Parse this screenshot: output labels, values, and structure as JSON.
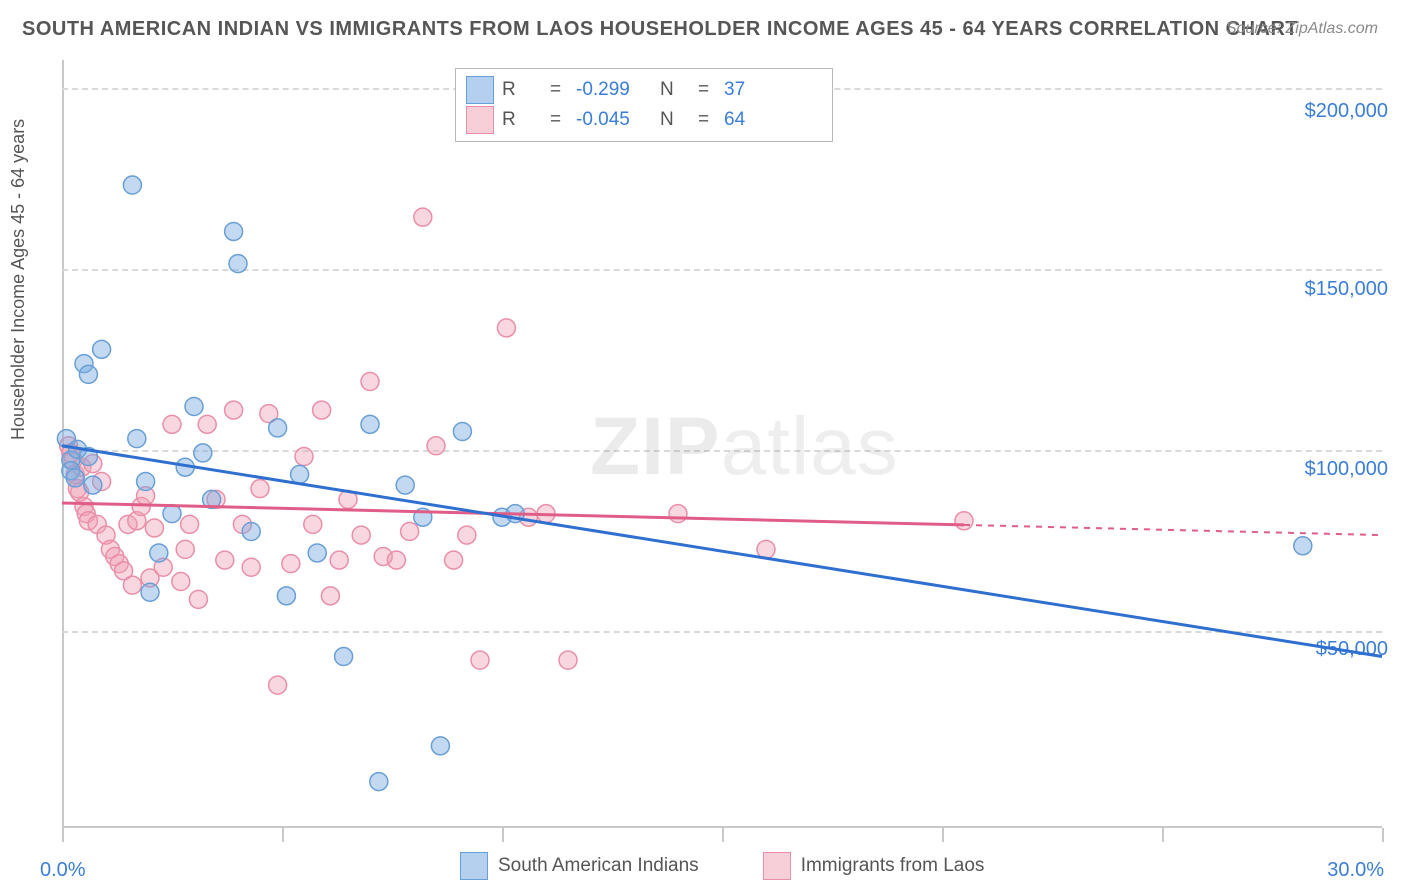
{
  "title": "SOUTH AMERICAN INDIAN VS IMMIGRANTS FROM LAOS HOUSEHOLDER INCOME AGES 45 - 64 YEARS CORRELATION CHART",
  "source": "Source: ZipAtlas.com",
  "y_axis_label": "Householder Income Ages 45 - 64 years",
  "watermark_bold": "ZIP",
  "watermark_rest": "atlas",
  "chart": {
    "type": "scatter",
    "xlim": [
      0,
      30
    ],
    "ylim": [
      0,
      215000
    ],
    "x_ticks": [
      0,
      5,
      10,
      15,
      20,
      25,
      30
    ],
    "x_tick_labels_shown": {
      "0": "0.0%",
      "30": "30.0%"
    },
    "y_gridlines": [
      50000,
      100000,
      150000,
      200000
    ],
    "y_tick_labels": {
      "50000": "$50,000",
      "100000": "$100,000",
      "150000": "$150,000",
      "200000": "$200,000"
    },
    "background_color": "#ffffff",
    "grid_color": "#d9d9d9",
    "border_color": "#c8c8c8",
    "marker_radius": 9,
    "marker_opacity": 0.45,
    "line_width": 3
  },
  "series": {
    "blue": {
      "label": "South American Indians",
      "color_fill": "rgba(120,170,225,0.45)",
      "color_stroke": "#6a9fd6",
      "line_color": "#2f6fd0",
      "r_value": "-0.299",
      "n_value": "37",
      "trend_start_y": 107000,
      "trend_end_y": 48000,
      "trend_x0": 0,
      "trend_x1": 30,
      "points": [
        [
          0.1,
          109000
        ],
        [
          0.2,
          103000
        ],
        [
          0.2,
          100000
        ],
        [
          0.3,
          98000
        ],
        [
          0.35,
          106000
        ],
        [
          0.5,
          130000
        ],
        [
          0.6,
          127000
        ],
        [
          0.6,
          104000
        ],
        [
          0.7,
          96000
        ],
        [
          0.9,
          134000
        ],
        [
          1.6,
          180000
        ],
        [
          1.7,
          109000
        ],
        [
          1.9,
          97000
        ],
        [
          2.2,
          77000
        ],
        [
          2.0,
          66000
        ],
        [
          2.5,
          88000
        ],
        [
          2.8,
          101000
        ],
        [
          3.0,
          118000
        ],
        [
          3.2,
          105000
        ],
        [
          3.4,
          92000
        ],
        [
          3.9,
          167000
        ],
        [
          4.0,
          158000
        ],
        [
          4.3,
          83000
        ],
        [
          4.9,
          112000
        ],
        [
          5.1,
          65000
        ],
        [
          5.4,
          99000
        ],
        [
          5.8,
          77000
        ],
        [
          6.4,
          48000
        ],
        [
          7.0,
          113000
        ],
        [
          7.8,
          96000
        ],
        [
          8.2,
          87000
        ],
        [
          8.6,
          23000
        ],
        [
          7.2,
          13000
        ],
        [
          9.1,
          111000
        ],
        [
          10.0,
          87000
        ],
        [
          10.3,
          88000
        ],
        [
          28.2,
          79000
        ]
      ]
    },
    "pink": {
      "label": "Immigrants from Laos",
      "color_fill": "rgba(240,160,180,0.42)",
      "color_stroke": "#e98fa8",
      "line_color": "#e05d87",
      "r_value": "-0.045",
      "n_value": "64",
      "trend_start_y": 91000,
      "trend_end_y": 82000,
      "trend_x0": 0,
      "trend_x1": 30,
      "trend_solid_until_x": 20.5,
      "points": [
        [
          0.15,
          107000
        ],
        [
          0.2,
          105000
        ],
        [
          0.25,
          103000
        ],
        [
          0.3,
          99000
        ],
        [
          0.35,
          95000
        ],
        [
          0.4,
          94000
        ],
        [
          0.45,
          101000
        ],
        [
          0.5,
          90000
        ],
        [
          0.55,
          88000
        ],
        [
          0.6,
          86000
        ],
        [
          0.7,
          102000
        ],
        [
          0.8,
          85000
        ],
        [
          0.9,
          97000
        ],
        [
          1.0,
          82000
        ],
        [
          1.1,
          78000
        ],
        [
          1.2,
          76000
        ],
        [
          1.3,
          74000
        ],
        [
          1.4,
          72000
        ],
        [
          1.5,
          85000
        ],
        [
          1.6,
          68000
        ],
        [
          1.7,
          86000
        ],
        [
          1.8,
          90000
        ],
        [
          1.9,
          93000
        ],
        [
          2.0,
          70000
        ],
        [
          2.1,
          84000
        ],
        [
          2.3,
          73000
        ],
        [
          2.5,
          113000
        ],
        [
          2.7,
          69000
        ],
        [
          2.8,
          78000
        ],
        [
          2.9,
          85000
        ],
        [
          3.1,
          64000
        ],
        [
          3.3,
          113000
        ],
        [
          3.5,
          92000
        ],
        [
          3.7,
          75000
        ],
        [
          3.9,
          117000
        ],
        [
          4.1,
          85000
        ],
        [
          4.3,
          73000
        ],
        [
          4.5,
          95000
        ],
        [
          4.7,
          116000
        ],
        [
          4.9,
          40000
        ],
        [
          5.2,
          74000
        ],
        [
          5.5,
          104000
        ],
        [
          5.7,
          85000
        ],
        [
          5.9,
          117000
        ],
        [
          6.1,
          65000
        ],
        [
          6.3,
          75000
        ],
        [
          6.5,
          92000
        ],
        [
          6.8,
          82000
        ],
        [
          7.0,
          125000
        ],
        [
          7.3,
          76000
        ],
        [
          7.6,
          75000
        ],
        [
          7.9,
          83000
        ],
        [
          8.2,
          171000
        ],
        [
          8.5,
          107000
        ],
        [
          8.9,
          75000
        ],
        [
          9.2,
          82000
        ],
        [
          9.5,
          47000
        ],
        [
          10.1,
          140000
        ],
        [
          10.6,
          87000
        ],
        [
          11.0,
          88000
        ],
        [
          11.5,
          47000
        ],
        [
          14.0,
          88000
        ],
        [
          16.0,
          78000
        ],
        [
          20.5,
          86000
        ]
      ]
    }
  },
  "legend_labels": {
    "R": "R",
    "eq": "=",
    "N": "N"
  }
}
